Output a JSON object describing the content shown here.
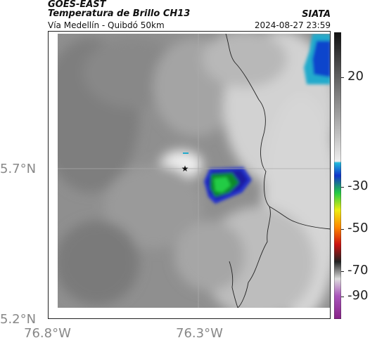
{
  "header": {
    "satellite": "GOES-EAST",
    "product": "Temperatura de Brillo CH13",
    "region": "Vía Medellín - Quibdó 50km",
    "source": "SIATA",
    "datetime": "2024-08-27 23:59"
  },
  "map": {
    "y_ticks": [
      "5.7°N",
      "5.2°N"
    ],
    "x_ticks": [
      "76.8°W",
      "76.3°W"
    ],
    "marker_icon": "star-icon"
  },
  "colorbar": {
    "ticks": [
      "20",
      "-30",
      "-50",
      "-70",
      "-90"
    ],
    "range": [
      -95,
      40
    ]
  }
}
